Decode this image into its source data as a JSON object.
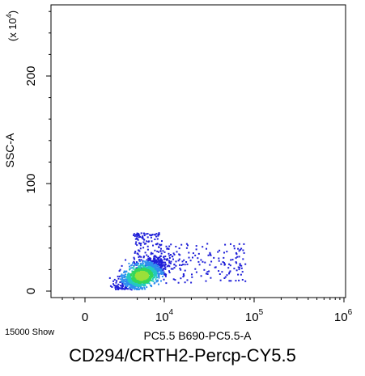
{
  "chart_data": {
    "type": "scatter",
    "title": "CD294/CRTH2-Percp-CY5.5",
    "xlabel": "PC5.5 B690-PC5.5-A",
    "ylabel": "SSC-A",
    "y_multiplier_label": "(x 10^4)",
    "x_scale": "biexponential",
    "x_ticks": [
      {
        "label": "0",
        "value": 0
      },
      {
        "label": "10^4",
        "value": 10000
      },
      {
        "label": "10^5",
        "value": 100000
      },
      {
        "label": "10^6",
        "value": 1000000
      }
    ],
    "y_ticks": [
      {
        "label": "0",
        "value": 0
      },
      {
        "label": "100",
        "value": 100
      },
      {
        "label": "200",
        "value": 200
      }
    ],
    "xlim": [
      -3000,
      1000000
    ],
    "ylim": [
      0,
      250
    ],
    "y_units": "x 10^4",
    "points_shown": 15000,
    "grid": false,
    "density_colors": [
      "#1f1fd8",
      "#2f8fef",
      "#25c9c0",
      "#33d65a",
      "#9be03a"
    ],
    "population_summary": {
      "center_x": 2500,
      "center_y": 15,
      "x_range": [
        300,
        20000
      ],
      "y_range": [
        2,
        60
      ]
    }
  },
  "footer": {
    "events_text": "15000 Show"
  }
}
